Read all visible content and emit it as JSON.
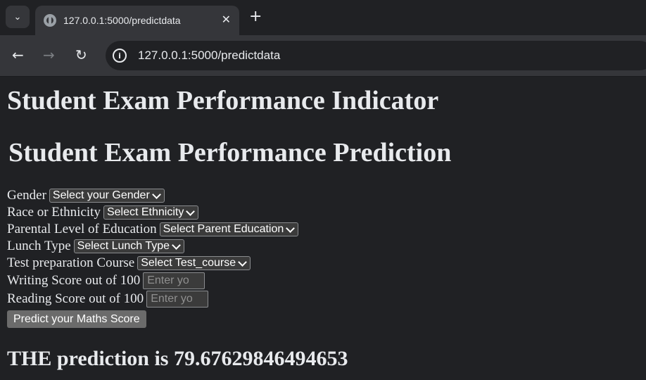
{
  "browser": {
    "tab_title": "127.0.0.1:5000/predictdata",
    "url": "127.0.0.1:5000/predictdata",
    "icons": {
      "tab_menu": "chevron-down-icon",
      "favicon": "globe-icon",
      "close": "close-icon",
      "new_tab": "plus-icon",
      "back": "arrow-left-icon",
      "forward": "arrow-right-icon",
      "reload": "reload-icon",
      "site_info": "info-icon"
    }
  },
  "page": {
    "heading": "Student Exam Performance Indicator",
    "subheading": "Student Exam Performance Prediction",
    "form": {
      "gender": {
        "label": "Gender",
        "selected": "Select your Gender"
      },
      "ethnicity": {
        "label": "Race or Ethnicity",
        "selected": "Select Ethnicity"
      },
      "parental_education": {
        "label": "Parental Level of Education",
        "selected": "Select Parent Education"
      },
      "lunch": {
        "label": "Lunch Type",
        "selected": "Select Lunch Type"
      },
      "test_prep": {
        "label": "Test preparation Course",
        "selected": "Select Test_course"
      },
      "writing_score": {
        "label": "Writing Score out of 100",
        "placeholder": "Enter yo"
      },
      "reading_score": {
        "label": "Reading Score out of 100",
        "placeholder": "Enter yo"
      },
      "submit_label": "Predict your Maths Score"
    },
    "result": "THE prediction is 79.67629846494653"
  },
  "colors": {
    "background": "#202124",
    "toolbar": "#35363a",
    "text": "#e8eaed",
    "control": "#3b3b3b",
    "button": "#6b6b6b"
  }
}
